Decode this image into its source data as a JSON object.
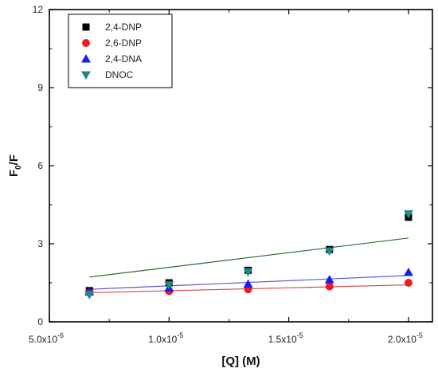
{
  "chart_data": {
    "type": "scatter",
    "xlabel": "[Q] (M)",
    "ylabel_main": "F",
    "ylabel_sub": "0",
    "ylabel_tail": "/F",
    "xlim": [
      5e-06,
      2.1e-05
    ],
    "ylim": [
      0,
      12
    ],
    "x_ticks": [
      {
        "value": 5e-06,
        "mantissa": "5.0x10",
        "exp": "-6"
      },
      {
        "value": 1e-05,
        "mantissa": "1.0x10",
        "exp": "-5"
      },
      {
        "value": 1.5e-05,
        "mantissa": "1.5x10",
        "exp": "-5"
      },
      {
        "value": 2e-05,
        "mantissa": "2.0x10",
        "exp": "-5"
      }
    ],
    "y_ticks": [
      0,
      3,
      6,
      9,
      12
    ],
    "legend_position": "top-left",
    "series": [
      {
        "name": "2,4-DNP",
        "marker": "square",
        "color": "#000000",
        "points": [
          [
            6.67e-06,
            1.2
          ],
          [
            1e-05,
            1.5
          ],
          [
            1.33e-05,
            1.98
          ],
          [
            1.67e-05,
            2.78
          ],
          [
            2e-05,
            4.02
          ]
        ]
      },
      {
        "name": "2,6-DNP",
        "marker": "circle",
        "color": "#ee1c1c",
        "points": [
          [
            6.67e-06,
            1.12
          ],
          [
            1e-05,
            1.18
          ],
          [
            1.33e-05,
            1.25
          ],
          [
            1.67e-05,
            1.36
          ],
          [
            2e-05,
            1.5
          ]
        ]
      },
      {
        "name": "2,4-DNA",
        "marker": "triangle-up",
        "color": "#1c1cee",
        "points": [
          [
            6.67e-06,
            1.15
          ],
          [
            1e-05,
            1.3
          ],
          [
            1.33e-05,
            1.45
          ],
          [
            1.67e-05,
            1.62
          ],
          [
            2e-05,
            1.9
          ]
        ]
      },
      {
        "name": "DNOC",
        "marker": "triangle-down",
        "color": "#1f8a8a",
        "points": [
          [
            6.67e-06,
            1.05
          ],
          [
            1e-05,
            1.42
          ],
          [
            1.33e-05,
            1.92
          ],
          [
            1.67e-05,
            2.72
          ],
          [
            2e-05,
            4.15
          ]
        ]
      }
    ],
    "fit_lines": [
      {
        "color": "#2e6b2e",
        "from": [
          6.67e-06,
          1.72
        ],
        "to": [
          2e-05,
          3.22
        ]
      },
      {
        "color": "#5a5add",
        "from": [
          6.67e-06,
          1.25
        ],
        "to": [
          2e-05,
          1.78
        ]
      },
      {
        "color": "#d24a4a",
        "from": [
          6.67e-06,
          1.12
        ],
        "to": [
          2e-05,
          1.42
        ]
      }
    ]
  }
}
